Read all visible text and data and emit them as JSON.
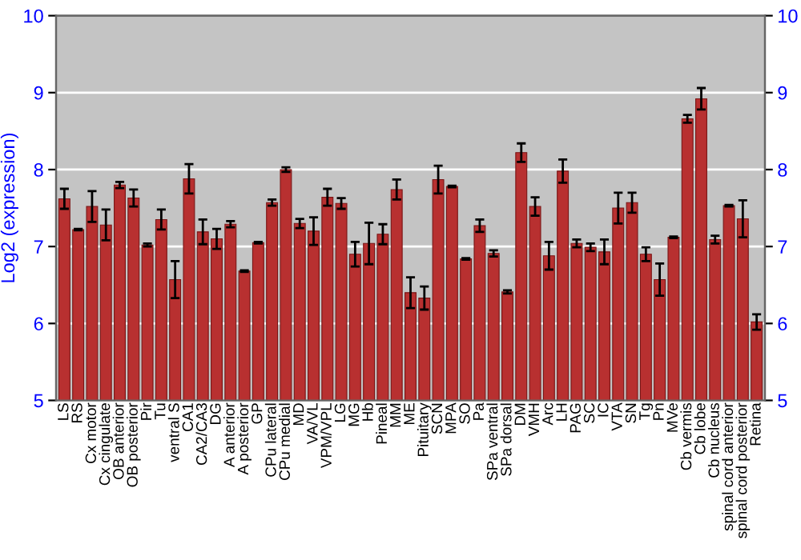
{
  "chart_data": {
    "type": "bar",
    "ylabel": "Log2 (expression)",
    "categories": [
      "LS",
      "RS",
      "Cx motor",
      "Cx cingulate",
      "OB anterior",
      "OB posterior",
      "Pir",
      "Tu",
      "ventral S",
      "CA1",
      "CA2/CA3",
      "DG",
      "A anterior",
      "A posterior",
      "GP",
      "CPu lateral",
      "CPu medial",
      "MD",
      "VA/VL",
      "VPM/VPL",
      "LG",
      "MG",
      "Hb",
      "Pineal",
      "MM",
      "ME",
      "Pituitary",
      "SCN",
      "MPA",
      "SO",
      "Pa",
      "SPa ventral",
      "SPa dorsal",
      "DM",
      "VMH",
      "Arc",
      "LH",
      "PAG",
      "SC",
      "IC",
      "VTA",
      "SN",
      "Tg",
      "Pn",
      "MVe",
      "Cb vermis",
      "Cb lobe",
      "Cb nucleus",
      "spinal cord anterior",
      "spinal cord posterior",
      "Retina"
    ],
    "values": [
      7.62,
      7.22,
      7.52,
      7.28,
      7.8,
      7.63,
      7.02,
      7.35,
      6.57,
      7.88,
      7.19,
      7.1,
      7.29,
      6.68,
      7.05,
      7.57,
      8.0,
      7.3,
      7.2,
      7.64,
      7.56,
      6.9,
      7.04,
      7.16,
      7.74,
      6.4,
      6.33,
      7.87,
      7.78,
      6.84,
      7.27,
      6.91,
      6.41,
      8.22,
      7.52,
      6.88,
      7.98,
      7.04,
      6.99,
      6.93,
      7.5,
      7.57,
      6.9,
      6.57,
      7.12,
      8.66,
      8.92,
      7.09,
      7.53,
      7.36,
      6.02
    ],
    "errors": [
      0.13,
      0.01,
      0.2,
      0.2,
      0.04,
      0.11,
      0.02,
      0.13,
      0.24,
      0.19,
      0.16,
      0.13,
      0.04,
      0.01,
      0.01,
      0.04,
      0.03,
      0.06,
      0.18,
      0.11,
      0.07,
      0.16,
      0.27,
      0.13,
      0.13,
      0.2,
      0.15,
      0.18,
      0.01,
      0.01,
      0.08,
      0.04,
      0.02,
      0.12,
      0.12,
      0.18,
      0.15,
      0.05,
      0.05,
      0.16,
      0.2,
      0.13,
      0.09,
      0.21,
      0.01,
      0.05,
      0.14,
      0.05,
      0.01,
      0.24,
      0.1
    ],
    "color": "#b83030",
    "ylim": [
      5,
      10
    ],
    "yticks": [
      5,
      6,
      7,
      8,
      9,
      10
    ],
    "y2lim": [
      5,
      10
    ],
    "y2ticks": [
      5,
      6,
      7,
      8,
      9,
      10
    ],
    "grid": "y"
  }
}
